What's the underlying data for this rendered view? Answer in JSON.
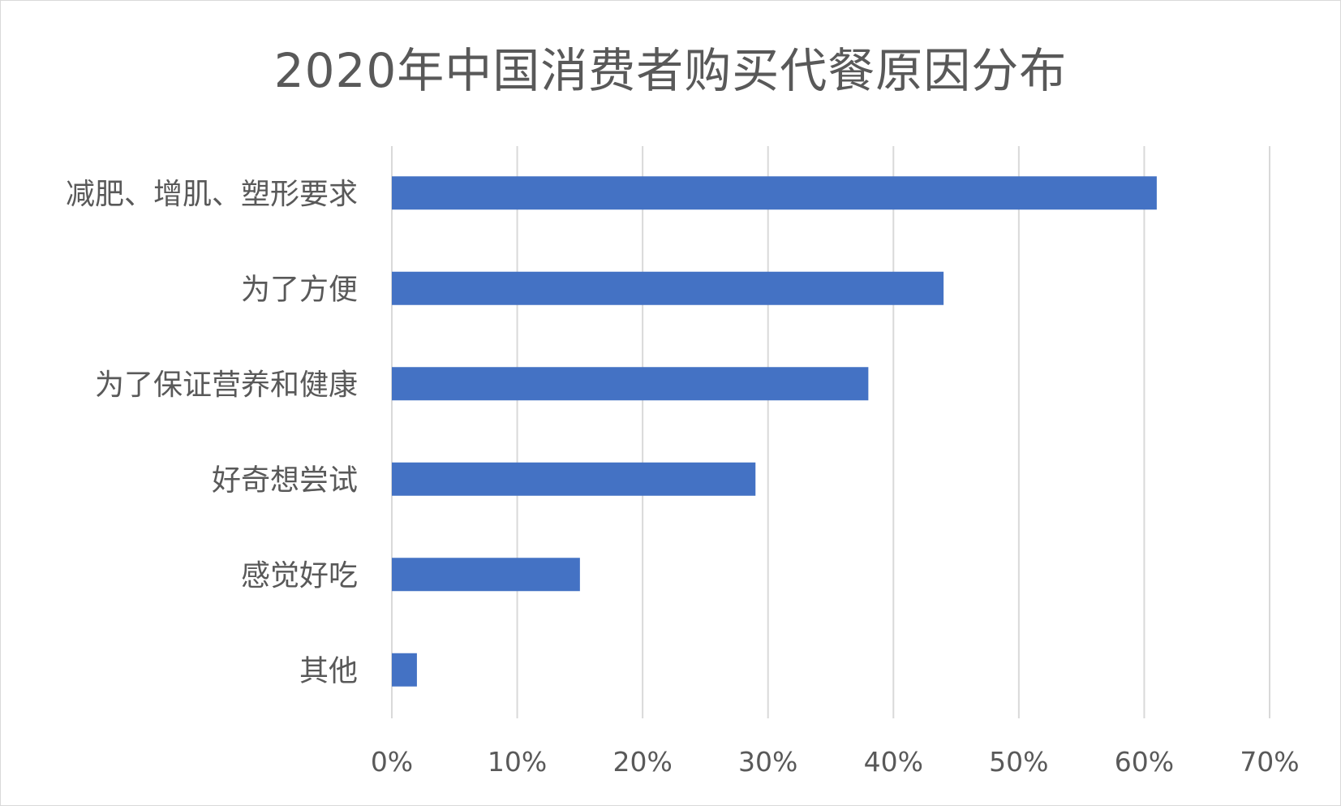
{
  "chart_data": {
    "type": "bar",
    "orientation": "horizontal",
    "title": "2020年中国消费者购买代餐原因分布",
    "categories": [
      "减肥、增肌、塑形要求",
      "为了方便",
      "为了保证营养和健康",
      "好奇想尝试",
      "感觉好吃",
      "其他"
    ],
    "values": [
      61,
      44,
      38,
      29,
      15,
      2
    ],
    "value_unit": "%",
    "xlim": [
      0,
      70
    ],
    "x_ticks": [
      "0%",
      "10%",
      "20%",
      "30%",
      "40%",
      "50%",
      "60%",
      "70%"
    ],
    "xlabel": "",
    "ylabel": "",
    "grid": "vertical",
    "legend": "none",
    "colors": {
      "bar": "#4472C4",
      "grid": "#d9d9d9",
      "text": "#595959",
      "border": "#d9d9d9"
    }
  }
}
